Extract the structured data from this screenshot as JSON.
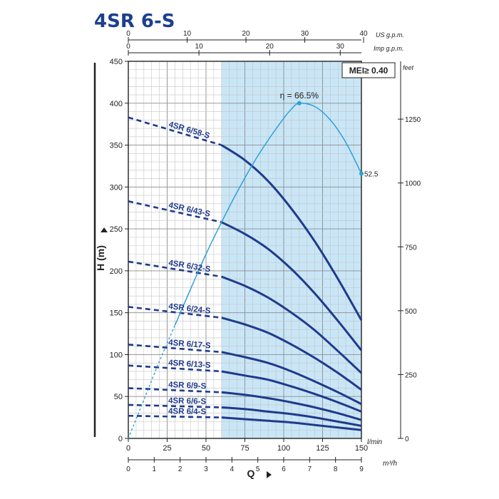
{
  "chart_data": {
    "type": "line",
    "title": "4SR 6-S",
    "badge": "MEI≥ 0.40",
    "xlabel": "Q",
    "ylabel": "H (m)",
    "x_unit": "l/min",
    "x_unit2": "m³/h",
    "top_unit1": "US g.p.m.",
    "top_unit2": "Imp g.p.m.",
    "right_unit": "feet",
    "xlim": [
      0,
      150
    ],
    "ylim": [
      0,
      450
    ],
    "highlight_range": [
      60,
      150
    ],
    "x_ticks": [
      "0",
      "25",
      "50",
      "75",
      "100",
      "125",
      "150"
    ],
    "y_ticks": [
      "0",
      "50",
      "100",
      "150",
      "200",
      "250",
      "300",
      "350",
      "400",
      "450"
    ],
    "m3h_ticks": [
      "0",
      "1",
      "2",
      "3",
      "4",
      "5",
      "6",
      "7",
      "8",
      "9"
    ],
    "usgpm_ticks": [
      "0",
      "10",
      "20",
      "30",
      "40"
    ],
    "impgpm_ticks": [
      "0",
      "10",
      "20",
      "30"
    ],
    "feet_ticks": [
      "0",
      "250",
      "500",
      "750",
      "1000",
      "1250"
    ],
    "series": [
      {
        "name": "4SR 6/58-S",
        "x": [
          0,
          60,
          75,
          90,
          105,
          120,
          135,
          150
        ],
        "y": [
          383,
          350,
          332,
          307,
          274,
          235,
          190,
          141
        ]
      },
      {
        "name": "4SR 6/43-S",
        "x": [
          0,
          60,
          75,
          90,
          105,
          120,
          135,
          150
        ],
        "y": [
          283,
          258,
          244,
          226,
          202,
          173,
          140,
          105
        ]
      },
      {
        "name": "4SR 6/32-S",
        "x": [
          0,
          60,
          75,
          90,
          105,
          120,
          135,
          150
        ],
        "y": [
          211,
          193,
          182,
          168,
          150,
          129,
          104,
          78
        ]
      },
      {
        "name": "4SR 6/24-S",
        "x": [
          0,
          60,
          75,
          90,
          105,
          120,
          135,
          150
        ],
        "y": [
          157,
          144,
          136,
          126,
          112,
          96,
          78,
          58
        ]
      },
      {
        "name": "4SR 6/17-S",
        "x": [
          0,
          60,
          75,
          90,
          105,
          120,
          135,
          150
        ],
        "y": [
          112,
          103,
          97,
          90,
          80,
          68,
          55,
          41
        ]
      },
      {
        "name": "4SR 6/13-S",
        "x": [
          0,
          60,
          75,
          90,
          105,
          120,
          135,
          150
        ],
        "y": [
          87,
          80,
          75,
          70,
          62,
          53,
          43,
          32
        ]
      },
      {
        "name": "4SR 6/9-S",
        "x": [
          0,
          60,
          75,
          90,
          105,
          120,
          135,
          150
        ],
        "y": [
          60,
          55,
          52,
          48,
          43,
          37,
          30,
          22
        ]
      },
      {
        "name": "4SR 6/6-S",
        "x": [
          0,
          60,
          75,
          90,
          105,
          120,
          135,
          150
        ],
        "y": [
          40,
          37,
          35,
          32,
          29,
          25,
          20,
          15
        ]
      },
      {
        "name": "4SR 6/4-S",
        "x": [
          0,
          60,
          75,
          90,
          105,
          120,
          135,
          150
        ],
        "y": [
          27,
          25,
          23,
          21,
          19,
          16,
          13,
          10
        ]
      }
    ],
    "efficiency": {
      "x": [
        0,
        10,
        20,
        30,
        40,
        50,
        60,
        70,
        80,
        90,
        100,
        105,
        110,
        120,
        130,
        140,
        150
      ],
      "y": [
        0,
        46,
        92,
        135,
        178,
        220,
        258,
        294,
        327,
        356,
        382,
        393,
        400,
        396,
        380,
        353,
        316
      ],
      "peak_label": "η = 66.5%",
      "end_label": "52.5"
    },
    "grid": true
  }
}
